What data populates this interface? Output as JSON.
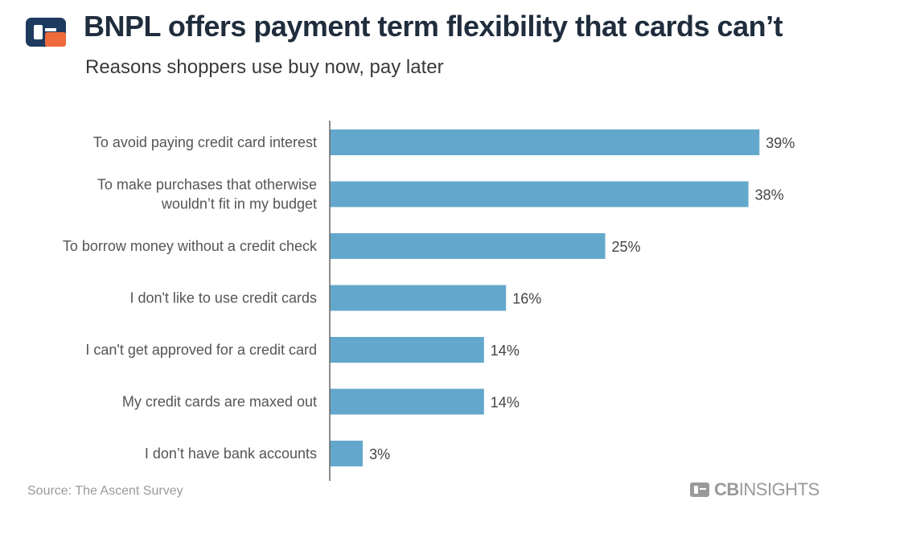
{
  "header": {
    "title": "BNPL offers payment term flexibility that cards can’t",
    "subtitle": "Reasons shoppers use buy now, pay later",
    "logo_icon": "cb-insights-logo-icon"
  },
  "footer": {
    "source": "Source: The Ascent Survey",
    "brand_bold": "CB",
    "brand_light": "INSIGHTS",
    "brand_icon": "cb-insights-logo-icon"
  },
  "colors": {
    "bar": "#63a8cc",
    "axis": "#666666",
    "logo_dark": "#1e3a5f",
    "logo_orange": "#ef6a3a"
  },
  "chart_data": {
    "type": "bar",
    "orientation": "horizontal",
    "categories": [
      [
        "To avoid paying credit card interest"
      ],
      [
        "To make purchases that otherwise",
        "wouldn’t fit in my budget"
      ],
      [
        "To borrow money without a credit check"
      ],
      [
        "I don't like to use credit cards"
      ],
      [
        "I can't get approved for a credit card"
      ],
      [
        "My credit cards are maxed out"
      ],
      [
        "I don’t have bank accounts"
      ]
    ],
    "values": [
      39,
      38,
      25,
      16,
      14,
      14,
      3
    ],
    "value_labels": [
      "39%",
      "38%",
      "25%",
      "16%",
      "14%",
      "14%",
      "3%"
    ],
    "unit": "%",
    "xlim": [
      0,
      40
    ],
    "grid": false,
    "legend": "none"
  }
}
